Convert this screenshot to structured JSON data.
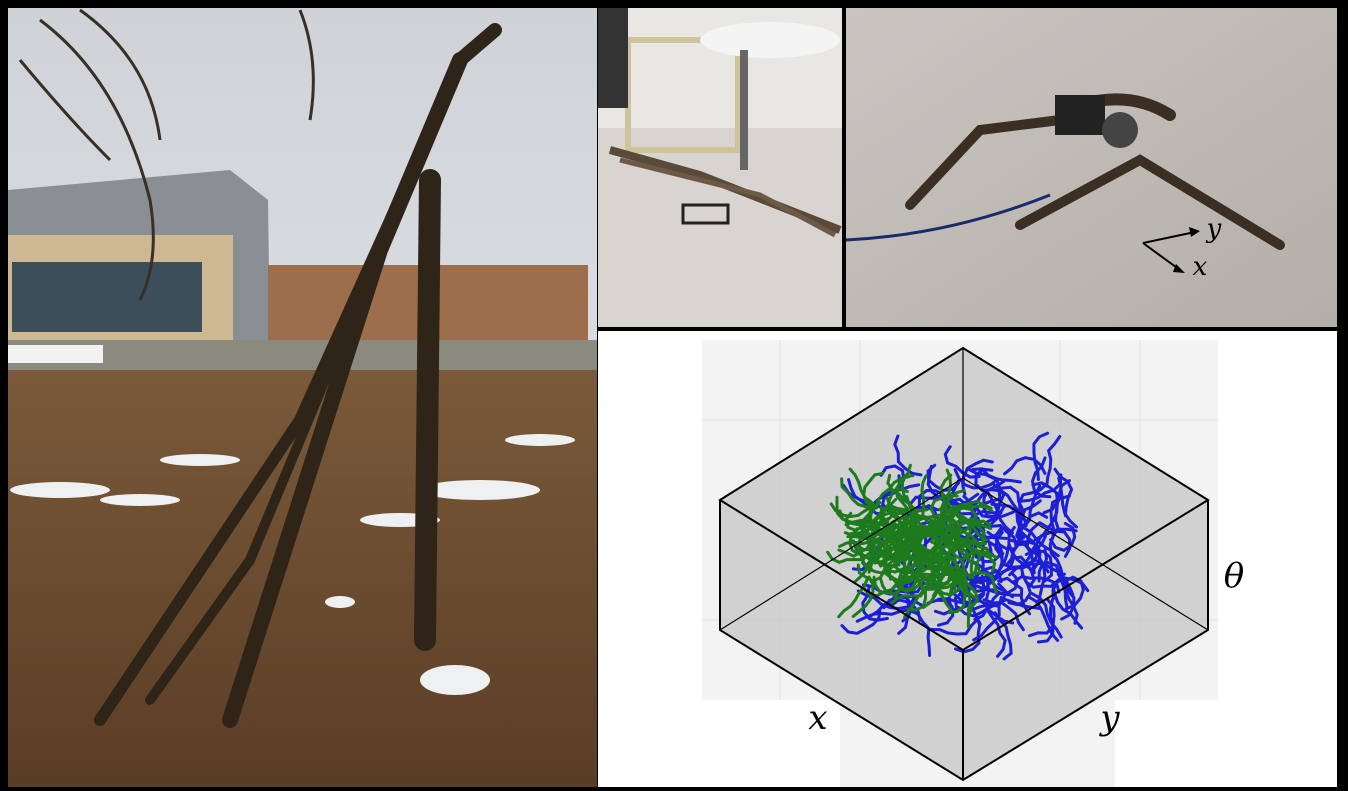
{
  "photo_axes": {
    "y": "y",
    "x": "x"
  },
  "plot_axes": {
    "x": "x",
    "y": "y",
    "theta": "θ"
  }
}
